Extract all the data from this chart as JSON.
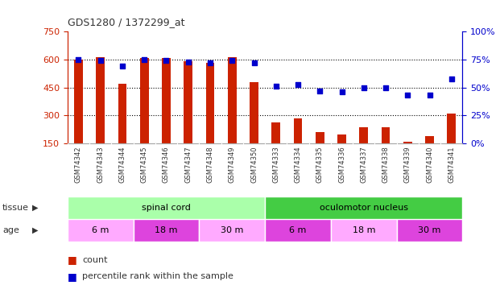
{
  "title": "GDS1280 / 1372299_at",
  "samples": [
    "GSM74342",
    "GSM74343",
    "GSM74344",
    "GSM74345",
    "GSM74346",
    "GSM74347",
    "GSM74348",
    "GSM74349",
    "GSM74350",
    "GSM74333",
    "GSM74334",
    "GSM74335",
    "GSM74336",
    "GSM74337",
    "GSM74338",
    "GSM74339",
    "GSM74340",
    "GSM74341"
  ],
  "counts": [
    600,
    615,
    470,
    610,
    608,
    590,
    585,
    615,
    480,
    265,
    285,
    210,
    200,
    235,
    235,
    160,
    190,
    310
  ],
  "percentiles": [
    75,
    74,
    69,
    75,
    74,
    73,
    72,
    74,
    72,
    51,
    53,
    47,
    46,
    50,
    50,
    43,
    43,
    58
  ],
  "ylim_left": [
    150,
    750
  ],
  "ylim_right": [
    0,
    100
  ],
  "yticks_left": [
    150,
    300,
    450,
    600,
    750
  ],
  "yticks_right": [
    0,
    25,
    50,
    75,
    100
  ],
  "bar_color": "#cc2200",
  "scatter_color": "#0000cc",
  "grid_lines": [
    300,
    450,
    600
  ],
  "bg_color": "#ffffff",
  "plot_bg": "#ffffff",
  "tissue_groups": [
    {
      "label": "spinal cord",
      "start": 0,
      "end": 9,
      "color": "#aaffaa"
    },
    {
      "label": "oculomotor nucleus",
      "start": 9,
      "end": 18,
      "color": "#44cc44"
    }
  ],
  "age_groups": [
    {
      "label": "6 m",
      "start": 0,
      "end": 3,
      "color": "#ffaaff"
    },
    {
      "label": "18 m",
      "start": 3,
      "end": 6,
      "color": "#dd44dd"
    },
    {
      "label": "30 m",
      "start": 6,
      "end": 9,
      "color": "#ffaaff"
    },
    {
      "label": "6 m",
      "start": 9,
      "end": 12,
      "color": "#dd44dd"
    },
    {
      "label": "18 m",
      "start": 12,
      "end": 15,
      "color": "#ffaaff"
    },
    {
      "label": "30 m",
      "start": 15,
      "end": 18,
      "color": "#dd44dd"
    }
  ],
  "axis_color_left": "#cc2200",
  "axis_color_right": "#0000cc",
  "legend_count_color": "#cc2200",
  "legend_pct_color": "#0000cc",
  "xticklabel_bg": "#d8d8d8",
  "tissue_label": "tissue",
  "age_label": "age"
}
